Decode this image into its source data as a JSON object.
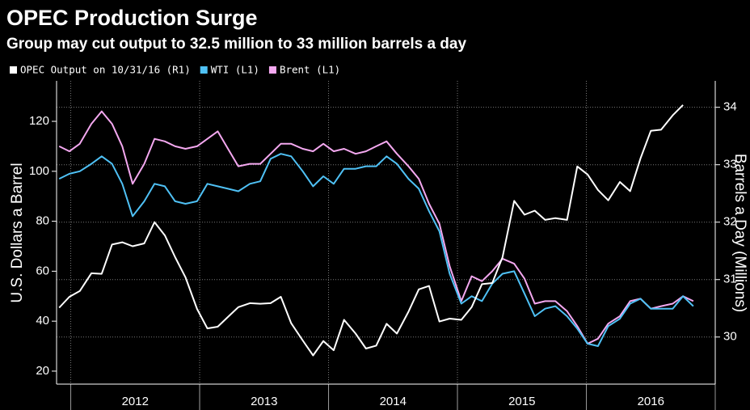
{
  "chart_data": {
    "type": "line",
    "title": "OPEC Production Surge",
    "subtitle": "Group may cut output to 32.5 million to 33 million barrels a day",
    "ylabel": "U.S. Dollars a Barrel",
    "y2label": "Barrels a Day (Millions)",
    "x": [
      2011.91,
      2011.99,
      2012.07,
      2012.16,
      2012.24,
      2012.32,
      2012.4,
      2012.48,
      2012.57,
      2012.65,
      2012.73,
      2012.81,
      2012.89,
      2012.98,
      2013.06,
      2013.14,
      2013.22,
      2013.3,
      2013.39,
      2013.47,
      2013.55,
      2013.63,
      2013.71,
      2013.8,
      2013.88,
      2013.96,
      2014.04,
      2014.12,
      2014.21,
      2014.29,
      2014.37,
      2014.45,
      2014.53,
      2014.62,
      2014.7,
      2014.78,
      2014.86,
      2014.94,
      2015.03,
      2015.11,
      2015.19,
      2015.27,
      2015.35,
      2015.44,
      2015.52,
      2015.6,
      2015.68,
      2015.76,
      2015.85,
      2015.93,
      2016.01,
      2016.09,
      2016.17,
      2016.26,
      2016.34,
      2016.42,
      2016.5,
      2016.58,
      2016.67,
      2016.75,
      2016.83
    ],
    "xlim": [
      2011.89,
      2017.0
    ],
    "xticks": [
      {
        "value": 2012.5,
        "label": "2012"
      },
      {
        "value": 2013.5,
        "label": "2013"
      },
      {
        "value": 2014.5,
        "label": "2014"
      },
      {
        "value": 2015.5,
        "label": "2015"
      },
      {
        "value": 2016.5,
        "label": "2016"
      }
    ],
    "ylim": [
      14.8,
      136.2
    ],
    "yticks": [
      20,
      40,
      60,
      80,
      100,
      120
    ],
    "y2lim": [
      29.18,
      34.46
    ],
    "y2ticks": [
      30,
      31,
      32,
      33,
      34
    ],
    "grid": true,
    "legend": "top-left",
    "series": [
      {
        "name": "OPEC Output on 10/31/16 (R1)",
        "color": "#ffffff",
        "axis": "y2",
        "values": [
          30.51,
          30.7,
          30.8,
          31.11,
          31.1,
          31.61,
          31.65,
          31.58,
          31.63,
          32.0,
          31.77,
          31.39,
          31.04,
          30.49,
          30.15,
          30.18,
          30.35,
          30.52,
          30.59,
          30.58,
          30.59,
          30.7,
          30.24,
          29.94,
          29.68,
          29.93,
          29.77,
          30.3,
          30.06,
          29.8,
          29.85,
          30.23,
          30.06,
          30.44,
          30.83,
          30.89,
          30.27,
          30.32,
          30.3,
          30.52,
          30.92,
          30.94,
          31.39,
          32.37,
          32.13,
          32.2,
          32.04,
          32.07,
          32.04,
          32.97,
          32.83,
          32.56,
          32.38,
          32.7,
          32.54,
          33.11,
          33.59,
          33.61,
          33.86,
          34.04,
          null
        ]
      },
      {
        "name": "WTI (L1)",
        "color": "#4fc1f5",
        "values": [
          97,
          99,
          100,
          103,
          106,
          103,
          95,
          82,
          88,
          95,
          94,
          88,
          87,
          88,
          95,
          94,
          93,
          92,
          95,
          96,
          105,
          107,
          106,
          100,
          94,
          98,
          95,
          101,
          101,
          102,
          102,
          106,
          103,
          97,
          93,
          84,
          76,
          59,
          47,
          50,
          48,
          55,
          59,
          60,
          51,
          42,
          45,
          46,
          42,
          37,
          31,
          30,
          38,
          41,
          47,
          49,
          45,
          45,
          45,
          50,
          46
        ]
      },
      {
        "name": "Brent  (L1)",
        "color": "#f4a8f0",
        "values": [
          110,
          108,
          111,
          119,
          124,
          119,
          110,
          95,
          103,
          113,
          112,
          110,
          109,
          110,
          113,
          116,
          109,
          102,
          103,
          103,
          107,
          111,
          111,
          109,
          108,
          111,
          108,
          109,
          107,
          108,
          110,
          112,
          107,
          102,
          97,
          87,
          79,
          62,
          48,
          58,
          56,
          60,
          65,
          63,
          57,
          47,
          48,
          48,
          44,
          38,
          31,
          33,
          39,
          42,
          48,
          49,
          45,
          46,
          47,
          50,
          48
        ]
      }
    ]
  }
}
